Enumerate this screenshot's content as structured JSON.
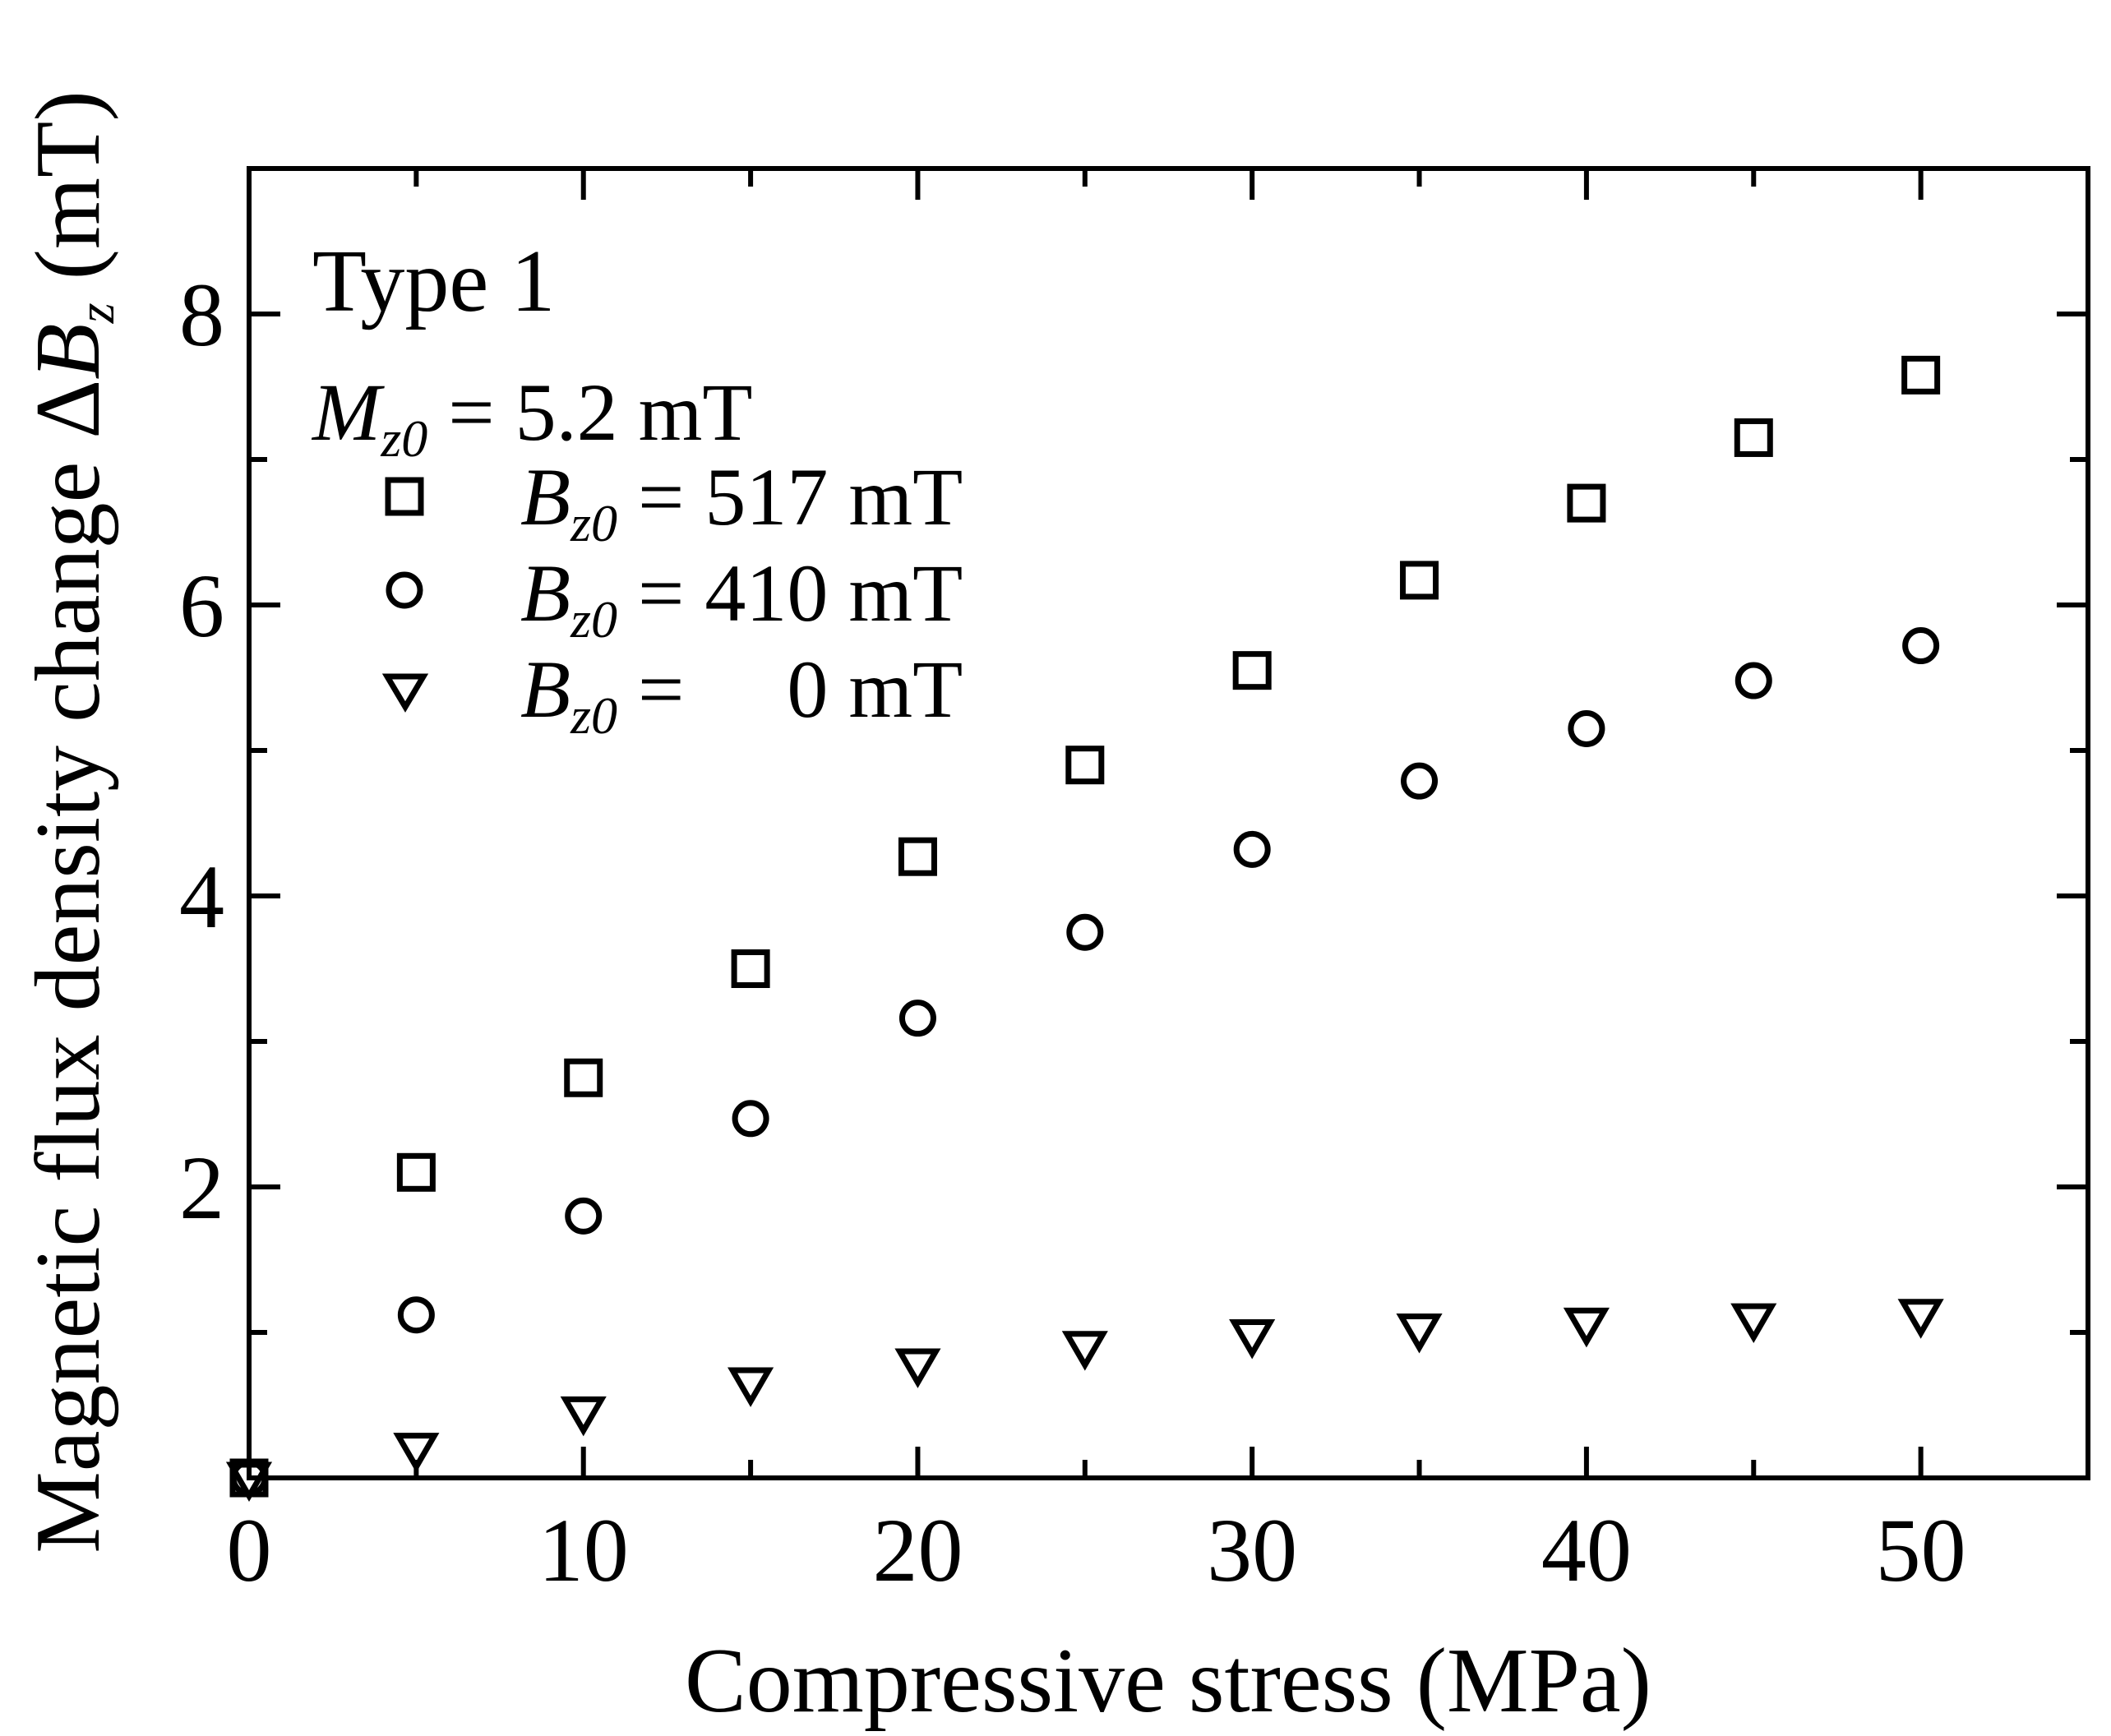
{
  "chart_data": {
    "type": "scatter",
    "title": "",
    "xlabel": "Compressive stress (MPa)",
    "ylabel": {
      "prefix": "Magnetic flux density change Δ",
      "var": "B",
      "sub": "z",
      "suffix": " (mT)"
    },
    "xlim": [
      0,
      55
    ],
    "ylim": [
      0,
      9
    ],
    "xticks": [
      0,
      10,
      20,
      30,
      40,
      50
    ],
    "yticks": [
      2,
      4,
      6,
      8
    ],
    "xtick_labels": [
      "0",
      "10",
      "20",
      "30",
      "40",
      "50"
    ],
    "ytick_labels": [
      "2",
      "4",
      "6",
      "8"
    ],
    "grid": false,
    "annotation": {
      "title": "Type 1",
      "magnetization": {
        "var": "M",
        "sub": "z0",
        "rest": " = 5.2 mT"
      }
    },
    "legend_position": "top-left",
    "series": [
      {
        "name": "Bz0 = 517 mT",
        "legend": {
          "var": "B",
          "sub": "z0",
          "rest": " = 517 mT"
        },
        "marker": "square",
        "x": [
          0,
          5,
          10,
          15,
          20,
          25,
          30,
          35,
          40,
          45,
          50
        ],
        "y": [
          0,
          2.1,
          2.75,
          3.5,
          4.27,
          4.9,
          5.55,
          6.17,
          6.7,
          7.15,
          7.58
        ]
      },
      {
        "name": "Bz0 = 410 mT",
        "legend": {
          "var": "B",
          "sub": "z0",
          "rest": " = 410 mT"
        },
        "marker": "circle",
        "x": [
          0,
          5,
          10,
          15,
          20,
          25,
          30,
          35,
          40,
          45,
          50
        ],
        "y": [
          0,
          1.12,
          1.8,
          2.47,
          3.16,
          3.75,
          4.32,
          4.79,
          5.15,
          5.48,
          5.72
        ]
      },
      {
        "name": "Bz0 = 0 mT",
        "legend": {
          "var": "B",
          "sub": "z0",
          "rest": " =     0 mT"
        },
        "marker": "triangle-down",
        "x": [
          0,
          5,
          10,
          15,
          20,
          25,
          30,
          35,
          40,
          45,
          50
        ],
        "y": [
          0,
          0.2,
          0.45,
          0.65,
          0.78,
          0.9,
          0.98,
          1.02,
          1.06,
          1.09,
          1.12
        ]
      }
    ]
  }
}
